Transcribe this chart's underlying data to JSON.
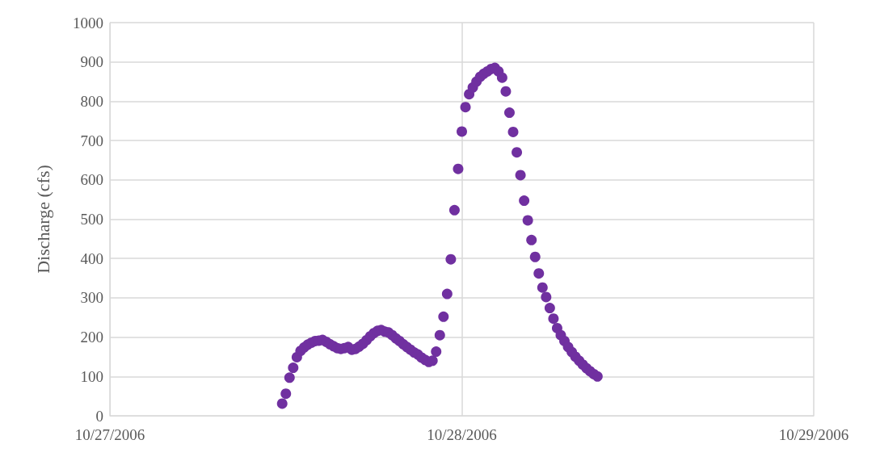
{
  "chart_data": {
    "type": "scatter",
    "ylabel": "Discharge (cfs)",
    "x": [
      "2006-10-27T11:45",
      "2006-10-27T12:00",
      "2006-10-27T12:15",
      "2006-10-27T12:30",
      "2006-10-27T12:45",
      "2006-10-27T13:00",
      "2006-10-27T13:15",
      "2006-10-27T13:30",
      "2006-10-27T13:45",
      "2006-10-27T14:00",
      "2006-10-27T14:15",
      "2006-10-27T14:30",
      "2006-10-27T14:45",
      "2006-10-27T15:00",
      "2006-10-27T15:15",
      "2006-10-27T15:30",
      "2006-10-27T15:45",
      "2006-10-27T16:00",
      "2006-10-27T16:15",
      "2006-10-27T16:30",
      "2006-10-27T16:45",
      "2006-10-27T17:00",
      "2006-10-27T17:15",
      "2006-10-27T17:30",
      "2006-10-27T17:45",
      "2006-10-27T18:00",
      "2006-10-27T18:15",
      "2006-10-27T18:30",
      "2006-10-27T18:45",
      "2006-10-27T19:00",
      "2006-10-27T19:15",
      "2006-10-27T19:30",
      "2006-10-27T19:45",
      "2006-10-27T20:00",
      "2006-10-27T20:15",
      "2006-10-27T20:30",
      "2006-10-27T20:45",
      "2006-10-27T21:00",
      "2006-10-27T21:15",
      "2006-10-27T21:30",
      "2006-10-27T21:45",
      "2006-10-27T22:00",
      "2006-10-27T22:15",
      "2006-10-27T22:30",
      "2006-10-27T22:45",
      "2006-10-27T23:00",
      "2006-10-27T23:15",
      "2006-10-27T23:30",
      "2006-10-27T23:45",
      "2006-10-28T00:00",
      "2006-10-28T00:15",
      "2006-10-28T00:30",
      "2006-10-28T00:45",
      "2006-10-28T01:00",
      "2006-10-28T01:15",
      "2006-10-28T01:30",
      "2006-10-28T01:45",
      "2006-10-28T02:00",
      "2006-10-28T02:15",
      "2006-10-28T02:30",
      "2006-10-28T02:45",
      "2006-10-28T03:00",
      "2006-10-28T03:15",
      "2006-10-28T03:30",
      "2006-10-28T03:45",
      "2006-10-28T04:00",
      "2006-10-28T04:15",
      "2006-10-28T04:30",
      "2006-10-28T04:45",
      "2006-10-28T05:00",
      "2006-10-28T05:15",
      "2006-10-28T05:30",
      "2006-10-28T05:45",
      "2006-10-28T06:00",
      "2006-10-28T06:15",
      "2006-10-28T06:30",
      "2006-10-28T06:45",
      "2006-10-28T07:00",
      "2006-10-28T07:15",
      "2006-10-28T07:30",
      "2006-10-28T07:45",
      "2006-10-28T08:00",
      "2006-10-28T08:15",
      "2006-10-28T08:30",
      "2006-10-28T08:45",
      "2006-10-28T09:00",
      "2006-10-28T09:15"
    ],
    "series": [
      {
        "color": "#7030a0",
        "values": [
          31,
          56,
          97,
          122,
          149,
          165,
          174,
          181,
          186,
          190,
          191,
          193,
          188,
          182,
          177,
          172,
          170,
          172,
          175,
          168,
          170,
          176,
          183,
          192,
          202,
          210,
          216,
          218,
          214,
          212,
          205,
          197,
          190,
          182,
          175,
          168,
          161,
          156,
          148,
          142,
          137,
          140,
          163,
          205,
          252,
          310,
          398,
          523,
          628,
          723,
          785,
          818,
          835,
          850,
          862,
          870,
          876,
          882,
          885,
          876,
          860,
          825,
          771,
          722,
          670,
          612,
          547,
          497,
          447,
          404,
          362,
          326,
          302,
          274,
          247,
          223,
          205,
          190,
          175,
          162,
          150,
          140,
          130,
          121,
          113,
          106,
          100
        ]
      }
    ],
    "xlim": [
      "2006-10-27",
      "2006-10-29"
    ],
    "xticks": [
      {
        "value": "2006-10-27",
        "label": "10/27/2006"
      },
      {
        "value": "2006-10-28",
        "label": "10/28/2006"
      },
      {
        "value": "2006-10-29",
        "label": "10/29/2006"
      }
    ],
    "ylim": [
      0,
      1000
    ],
    "yticks": [
      0,
      100,
      200,
      300,
      400,
      500,
      600,
      700,
      800,
      900,
      1000
    ],
    "grid": true,
    "marker": "circle"
  }
}
